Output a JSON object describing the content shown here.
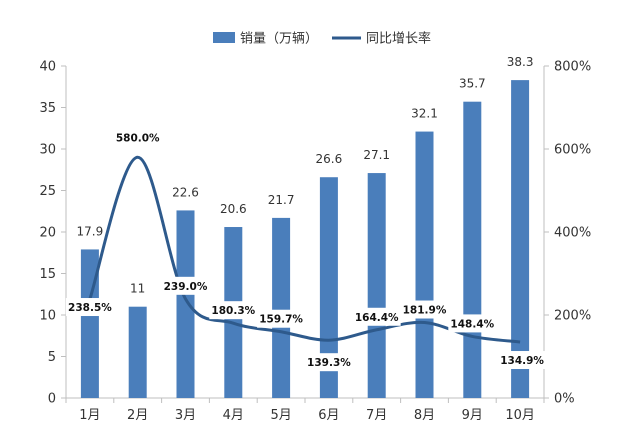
{
  "chart_data": {
    "type": "bar",
    "categories": [
      "1月",
      "2月",
      "3月",
      "4月",
      "5月",
      "6月",
      "7月",
      "8月",
      "9月",
      "10月"
    ],
    "series": [
      {
        "name": "销量（万辆）",
        "type": "bar",
        "axis": "left",
        "color": "#4A7EBB",
        "values": [
          17.9,
          11,
          22.6,
          20.6,
          21.7,
          26.6,
          27.1,
          32.1,
          35.7,
          38.3
        ],
        "labels": [
          "17.9",
          "11",
          "22.6",
          "20.6",
          "21.7",
          "26.6",
          "27.1",
          "32.1",
          "35.7",
          "38.3"
        ]
      },
      {
        "name": "同比增长率",
        "type": "line",
        "axis": "right",
        "color": "#2E5A8C",
        "values": [
          238.5,
          580.0,
          239.0,
          180.3,
          159.7,
          139.3,
          164.4,
          181.9,
          148.4,
          134.9
        ],
        "labels": [
          "238.5%",
          "580.0%",
          "239.0%",
          "180.3%",
          "159.7%",
          "139.3%",
          "164.4%",
          "181.9%",
          "148.4%",
          "134.9%"
        ]
      }
    ],
    "y_left": {
      "range": [
        0,
        40
      ],
      "ticks": [
        0,
        5,
        10,
        15,
        20,
        25,
        30,
        35,
        40
      ],
      "tick_labels": [
        "0",
        "5",
        "10",
        "15",
        "20",
        "25",
        "30",
        "35",
        "40"
      ]
    },
    "y_right": {
      "range": [
        0,
        800
      ],
      "ticks": [
        0,
        200,
        400,
        600,
        800
      ],
      "tick_labels": [
        "0%",
        "200%",
        "400%",
        "600%",
        "800%"
      ]
    },
    "legend": {
      "position": "top-center",
      "items": [
        "销量（万辆）",
        "同比增长率"
      ]
    },
    "grid": false,
    "title": "",
    "xlabel": "",
    "ylabel": ""
  }
}
